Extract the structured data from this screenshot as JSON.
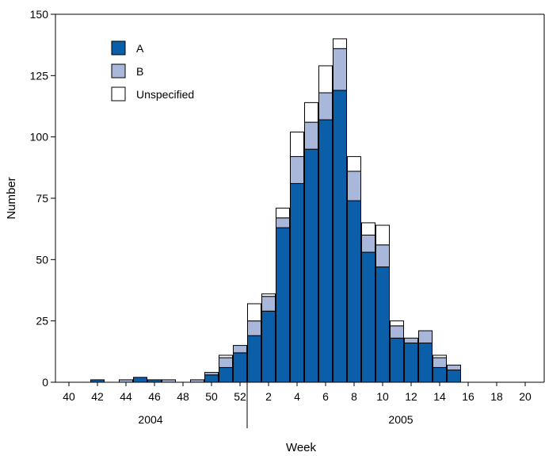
{
  "chart_data": {
    "type": "bar",
    "stacked": true,
    "title": "",
    "xlabel": "Week",
    "ylabel": "Number",
    "ylim": [
      0,
      150
    ],
    "yticks": [
      0,
      25,
      50,
      75,
      100,
      125,
      150
    ],
    "grid": false,
    "legend": {
      "position": "top-left",
      "entries": [
        {
          "name": "A",
          "color": "#0a5fa8"
        },
        {
          "name": "B",
          "color": "#a9b8da"
        },
        {
          "name": "Unspecified",
          "color": "#ffffff"
        }
      ]
    },
    "categories": [
      40,
      41,
      42,
      43,
      44,
      45,
      46,
      47,
      48,
      49,
      50,
      51,
      52,
      1,
      2,
      3,
      4,
      5,
      6,
      7,
      8,
      9,
      10,
      11,
      12,
      13,
      14,
      15,
      16,
      17,
      18,
      19,
      20
    ],
    "tick_labels": [
      "40",
      "42",
      "44",
      "46",
      "48",
      "50",
      "52",
      "2",
      "4",
      "6",
      "8",
      "10",
      "12",
      "14",
      "16",
      "18",
      "20"
    ],
    "year_labels": [
      "2004",
      "2005"
    ],
    "series": [
      {
        "name": "A",
        "color": "#0a5fa8",
        "values": [
          0,
          0,
          1,
          0,
          0,
          2,
          1,
          0,
          0,
          0,
          3,
          6,
          12,
          19,
          29,
          63,
          81,
          95,
          107,
          119,
          74,
          53,
          47,
          18,
          16,
          16,
          6,
          5,
          0,
          0,
          0,
          0,
          0
        ]
      },
      {
        "name": "B",
        "color": "#a9b8da",
        "values": [
          0,
          0,
          0,
          0,
          1,
          0,
          0,
          1,
          0,
          1,
          1,
          4,
          3,
          6,
          6,
          4,
          11,
          11,
          11,
          17,
          12,
          7,
          9,
          5,
          2,
          5,
          4,
          2,
          0,
          0,
          0,
          0,
          0
        ]
      },
      {
        "name": "Unspecified",
        "color": "#ffffff",
        "values": [
          0,
          0,
          0,
          0,
          0,
          0,
          0,
          0,
          0,
          0,
          0,
          1,
          0,
          7,
          1,
          4,
          10,
          8,
          11,
          4,
          6,
          5,
          8,
          2,
          0,
          0,
          1,
          0,
          0,
          0,
          0,
          0,
          0
        ]
      }
    ]
  }
}
